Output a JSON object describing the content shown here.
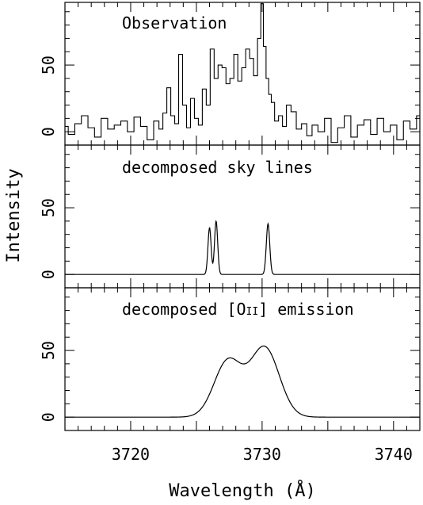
{
  "chart_data": [
    {
      "type": "line",
      "title": "Observation",
      "step": true,
      "xlim": [
        3715,
        3742
      ],
      "ylim": [
        -10,
        97
      ],
      "yticks": [
        0,
        50
      ],
      "show_xtick_labels": false,
      "x": [
        3715.0,
        3715.5,
        3716.0,
        3716.5,
        3717.0,
        3717.5,
        3718.0,
        3718.5,
        3719.0,
        3719.5,
        3720.0,
        3720.5,
        3721.0,
        3721.5,
        3722.0,
        3722.3,
        3722.6,
        3722.9,
        3723.2,
        3723.5,
        3723.8,
        3724.1,
        3724.4,
        3724.7,
        3725.0,
        3725.3,
        3725.6,
        3725.9,
        3726.2,
        3726.5,
        3726.8,
        3727.1,
        3727.4,
        3727.7,
        3728.0,
        3728.3,
        3728.6,
        3728.9,
        3729.2,
        3729.5,
        3729.8,
        3730.0,
        3730.2,
        3730.4,
        3730.6,
        3730.8,
        3731.1,
        3731.4,
        3731.7,
        3732.0,
        3732.4,
        3732.8,
        3733.2,
        3733.6,
        3734.0,
        3734.5,
        3735.0,
        3735.5,
        3736.0,
        3736.5,
        3737.0,
        3737.5,
        3738.0,
        3738.5,
        3739.0,
        3739.5,
        3740.0,
        3740.5,
        3741.0,
        3741.5,
        3742.0
      ],
      "y": [
        4,
        -2,
        6,
        12,
        3,
        -4,
        10,
        2,
        5,
        8,
        0,
        11,
        4,
        -6,
        8,
        2,
        14,
        33,
        12,
        6,
        58,
        20,
        3,
        25,
        10,
        5,
        32,
        20,
        62,
        40,
        50,
        48,
        36,
        40,
        58,
        38,
        48,
        62,
        55,
        42,
        70,
        96,
        64,
        40,
        28,
        22,
        8,
        12,
        4,
        20,
        15,
        2,
        6,
        -3,
        5,
        0,
        10,
        -8,
        3,
        12,
        -4,
        5,
        9,
        -2,
        10,
        0,
        5,
        -6,
        8,
        2,
        12
      ]
    },
    {
      "type": "line",
      "title": "decomposed sky lines",
      "ylim": [
        -10,
        97
      ],
      "yticks": [
        0,
        50
      ],
      "show_xtick_labels": false,
      "lines": [
        {
          "center": 3726.0,
          "amplitude": 35,
          "sigma": 0.12
        },
        {
          "center": 3726.5,
          "amplitude": 40,
          "sigma": 0.12
        },
        {
          "center": 3730.45,
          "amplitude": 38,
          "sigma": 0.13
        }
      ]
    },
    {
      "type": "line",
      "title": "decomposed [O",
      "title_roman": "II",
      "title_suffix": "] emission",
      "ylim": [
        -10,
        97
      ],
      "yticks": [
        0,
        50
      ],
      "xticks": [
        3720,
        3730,
        3740
      ],
      "show_xtick_labels": true,
      "components": [
        {
          "center": 3727.4,
          "amplitude": 42,
          "sigma": 1.05
        },
        {
          "center": 3730.2,
          "amplitude": 52,
          "sigma": 1.1
        }
      ]
    }
  ],
  "axes": {
    "xlabel": "Wavelength (Å)",
    "ylabel": "Intensity"
  }
}
